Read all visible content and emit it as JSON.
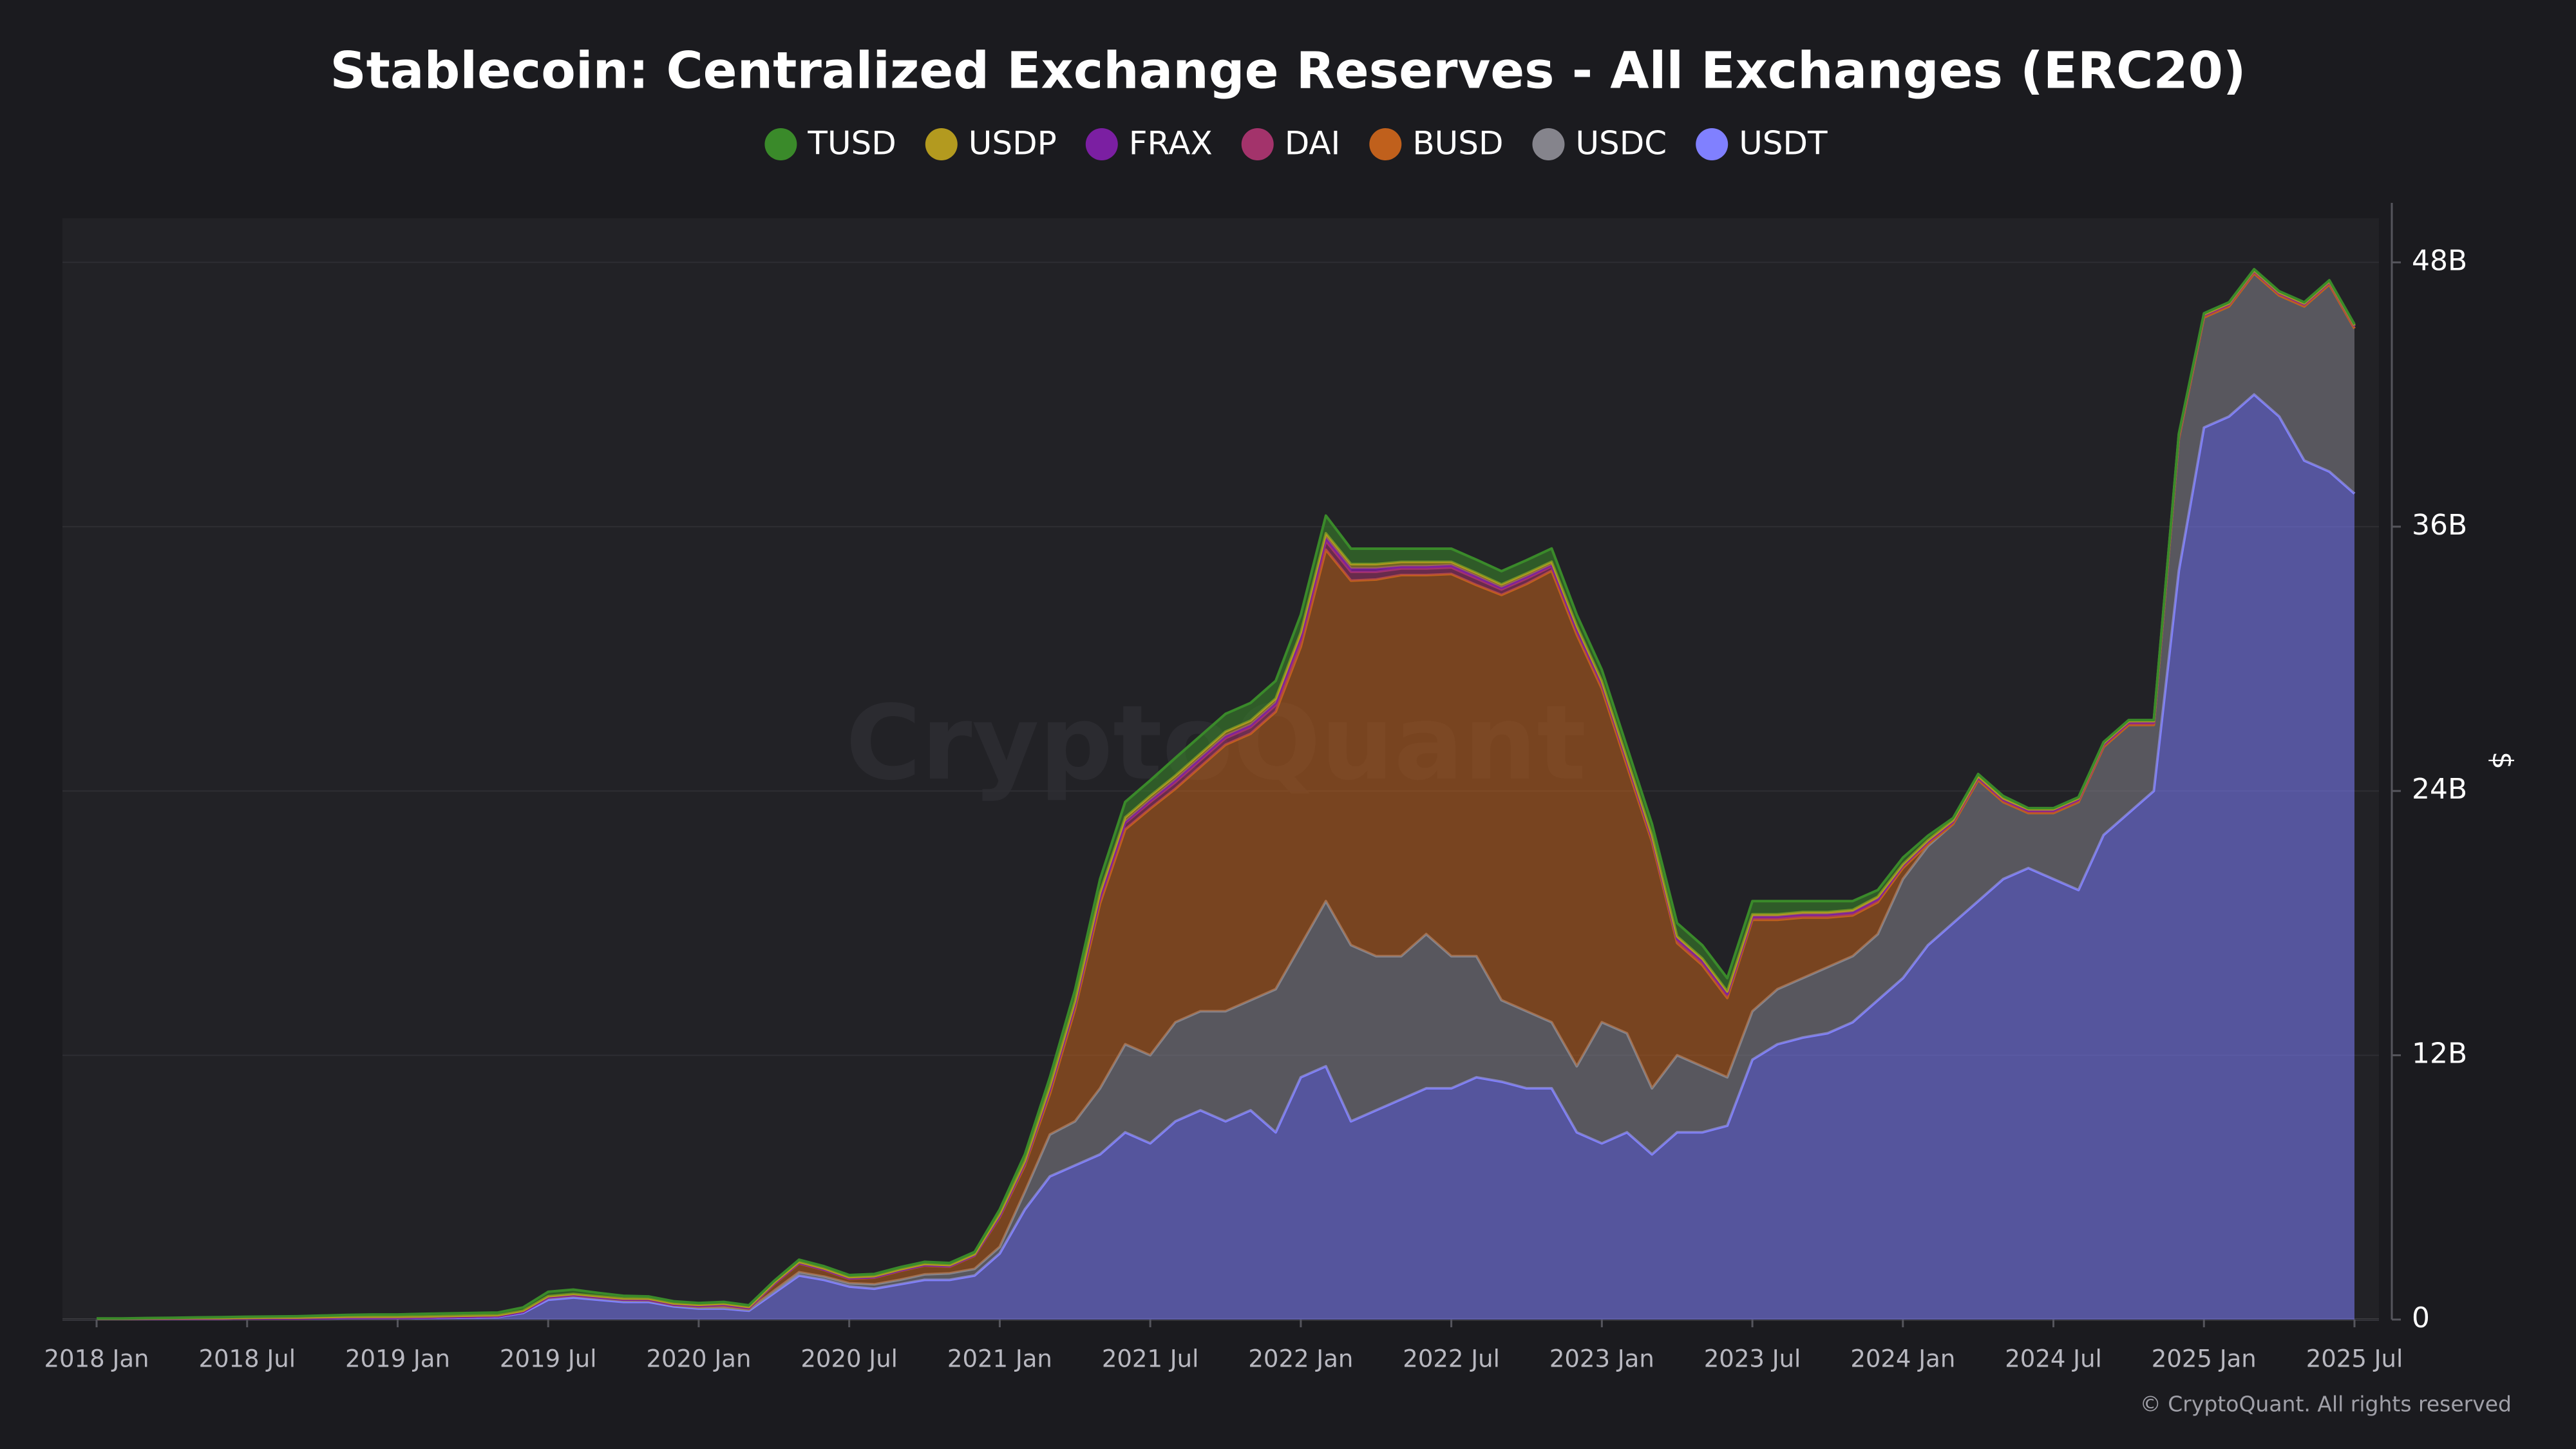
{
  "chart_data": {
    "type": "stacked_area",
    "title": "Stablecoin: Centralized Exchange Reserves - All Exchanges (ERC20)",
    "y_label": "$",
    "watermark": "CryptoQuant",
    "copyright": "© CryptoQuant. All rights reserved",
    "x": [
      "2018 Jan",
      "2018 Feb",
      "2018 Mar",
      "2018 Apr",
      "2018 May",
      "2018 Jun",
      "2018 Jul",
      "2018 Aug",
      "2018 Sep",
      "2018 Oct",
      "2018 Nov",
      "2018 Dec",
      "2019 Jan",
      "2019 Feb",
      "2019 Mar",
      "2019 Apr",
      "2019 May",
      "2019 Jun",
      "2019 Jul",
      "2019 Aug",
      "2019 Sep",
      "2019 Oct",
      "2019 Nov",
      "2019 Dec",
      "2020 Jan",
      "2020 Feb",
      "2020 Mar",
      "2020 Apr",
      "2020 May",
      "2020 Jun",
      "2020 Jul",
      "2020 Aug",
      "2020 Sep",
      "2020 Oct",
      "2020 Nov",
      "2020 Dec",
      "2021 Jan",
      "2021 Feb",
      "2021 Mar",
      "2021 Apr",
      "2021 May",
      "2021 Jun",
      "2021 Jul",
      "2021 Aug",
      "2021 Sep",
      "2021 Oct",
      "2021 Nov",
      "2021 Dec",
      "2022 Jan",
      "2022 Feb",
      "2022 Mar",
      "2022 Apr",
      "2022 May",
      "2022 Jun",
      "2022 Jul",
      "2022 Aug",
      "2022 Sep",
      "2022 Oct",
      "2022 Nov",
      "2022 Dec",
      "2023 Jan",
      "2023 Feb",
      "2023 Mar",
      "2023 Apr",
      "2023 May",
      "2023 Jun",
      "2023 Jul",
      "2023 Aug",
      "2023 Sep",
      "2023 Oct",
      "2023 Nov",
      "2023 Dec",
      "2024 Jan",
      "2024 Feb",
      "2024 Mar",
      "2024 Apr",
      "2024 May",
      "2024 Jun",
      "2024 Jul",
      "2024 Aug",
      "2024 Sep",
      "2024 Oct",
      "2024 Nov",
      "2024 Dec",
      "2025 Jan",
      "2025 Feb",
      "2025 Mar",
      "2025 Apr",
      "2025 May",
      "2025 Jun",
      "2025 Jul"
    ],
    "ylim": [
      0,
      50000000000.0
    ],
    "yticks": [
      0,
      {
        "value": 12000000000.0,
        "label": "12B"
      },
      {
        "value": 24000000000.0,
        "label": "24B"
      },
      {
        "value": 36000000000.0,
        "label": "36B"
      },
      {
        "value": 48000000000.0,
        "label": "48B"
      }
    ],
    "series": [
      {
        "name": "TUSD",
        "color": "#3a8a2a",
        "values": [
          10000000.0,
          10000000.0,
          20000000.0,
          20000000.0,
          30000000.0,
          40000000.0,
          50000000.0,
          50000000.0,
          60000000.0,
          70000000.0,
          80000000.0,
          100000000.0,
          100000000.0,
          120000000.0,
          120000000.0,
          120000000.0,
          120000000.0,
          150000000.0,
          200000000.0,
          200000000.0,
          150000000.0,
          120000000.0,
          100000000.0,
          100000000.0,
          80000000.0,
          80000000.0,
          80000000.0,
          80000000.0,
          100000000.0,
          100000000.0,
          100000000.0,
          100000000.0,
          100000000.0,
          100000000.0,
          100000000.0,
          100000000.0,
          200000000.0,
          300000000.0,
          400000000.0,
          500000000.0,
          600000000.0,
          700000000.0,
          700000000.0,
          800000000.0,
          800000000.0,
          800000000.0,
          800000000.0,
          800000000.0,
          800000000.0,
          800000000.0,
          700000000.0,
          700000000.0,
          600000000.0,
          600000000.0,
          600000000.0,
          600000000.0,
          600000000.0,
          600000000.0,
          600000000.0,
          500000000.0,
          500000000.0,
          500000000.0,
          500000000.0,
          600000000.0,
          600000000.0,
          600000000.0,
          600000000.0,
          600000000.0,
          500000000.0,
          500000000.0,
          400000000.0,
          300000000.0,
          300000000.0,
          200000000.0,
          100000000.0,
          100000000.0,
          100000000.0,
          50000000.0,
          50000000.0,
          50000000.0,
          50000000.0,
          50000000.0,
          50000000.0,
          50000000.0,
          50000000.0,
          50000000.0,
          50000000.0,
          50000000.0,
          50000000.0,
          50000000.0,
          50000000.0
        ]
      },
      {
        "name": "USDP",
        "color": "#b39a1f",
        "values": [
          10000000.0,
          10000000.0,
          20000000.0,
          20000000.0,
          30000000.0,
          30000000.0,
          30000000.0,
          40000000.0,
          40000000.0,
          50000000.0,
          50000000.0,
          50000000.0,
          50000000.0,
          50000000.0,
          50000000.0,
          50000000.0,
          50000000.0,
          50000000.0,
          50000000.0,
          50000000.0,
          50000000.0,
          50000000.0,
          50000000.0,
          50000000.0,
          50000000.0,
          50000000.0,
          50000000.0,
          50000000.0,
          50000000.0,
          50000000.0,
          50000000.0,
          50000000.0,
          50000000.0,
          50000000.0,
          50000000.0,
          50000000.0,
          100000000.0,
          100000000.0,
          150000000.0,
          150000000.0,
          200000000.0,
          200000000.0,
          200000000.0,
          200000000.0,
          200000000.0,
          200000000.0,
          200000000.0,
          200000000.0,
          200000000.0,
          200000000.0,
          200000000.0,
          200000000.0,
          200000000.0,
          200000000.0,
          150000000.0,
          150000000.0,
          150000000.0,
          150000000.0,
          150000000.0,
          150000000.0,
          100000000.0,
          100000000.0,
          100000000.0,
          100000000.0,
          100000000.0,
          100000000.0,
          100000000.0,
          100000000.0,
          100000000.0,
          100000000.0,
          100000000.0,
          100000000.0,
          50000000.0,
          50000000.0,
          50000000.0,
          50000000.0,
          50000000.0,
          50000000.0,
          50000000.0,
          50000000.0,
          50000000.0,
          50000000.0,
          50000000.0,
          50000000.0,
          30000000.0,
          30000000.0,
          30000000.0,
          30000000.0,
          30000000.0,
          30000000.0,
          30000000.0
        ]
      },
      {
        "name": "FRAX",
        "color": "#7b1fa2",
        "values": [
          0,
          0,
          0,
          0,
          0,
          0,
          0,
          0,
          0,
          0,
          0,
          0,
          0,
          0,
          0,
          0,
          0,
          0,
          0,
          0,
          0,
          0,
          0,
          0,
          0,
          0,
          0,
          0,
          0,
          0,
          0,
          0,
          0,
          0,
          0,
          0,
          0,
          0,
          0,
          20000000.0,
          50000000.0,
          50000000.0,
          80000000.0,
          100000000.0,
          100000000.0,
          100000000.0,
          100000000.0,
          100000000.0,
          150000000.0,
          150000000.0,
          150000000.0,
          150000000.0,
          100000000.0,
          100000000.0,
          100000000.0,
          100000000.0,
          80000000.0,
          80000000.0,
          60000000.0,
          50000000.0,
          50000000.0,
          50000000.0,
          50000000.0,
          50000000.0,
          50000000.0,
          50000000.0,
          50000000.0,
          50000000.0,
          50000000.0,
          50000000.0,
          50000000.0,
          50000000.0,
          20000000.0,
          20000000.0,
          20000000.0,
          20000000.0,
          20000000.0,
          20000000.0,
          20000000.0,
          20000000.0,
          20000000.0,
          20000000.0,
          20000000.0,
          20000000.0,
          10000000.0,
          10000000.0,
          10000000.0,
          10000000.0,
          10000000.0,
          10000000.0,
          10000000.0
        ]
      },
      {
        "name": "DAI",
        "color": "#a3336b",
        "values": [
          0,
          0,
          0,
          0,
          0,
          0,
          0,
          0,
          0,
          0,
          0,
          0,
          0,
          0,
          0,
          0,
          0,
          0,
          10000000.0,
          10000000.0,
          10000000.0,
          10000000.0,
          10000000.0,
          10000000.0,
          20000000.0,
          20000000.0,
          20000000.0,
          20000000.0,
          20000000.0,
          20000000.0,
          20000000.0,
          20000000.0,
          20000000.0,
          20000000.0,
          20000000.0,
          20000000.0,
          50000000.0,
          100000000.0,
          200000000.0,
          200000000.0,
          250000000.0,
          300000000.0,
          300000000.0,
          300000000.0,
          300000000.0,
          300000000.0,
          300000000.0,
          300000000.0,
          300000000.0,
          400000000.0,
          400000000.0,
          350000000.0,
          300000000.0,
          300000000.0,
          300000000.0,
          300000000.0,
          250000000.0,
          250000000.0,
          200000000.0,
          200000000.0,
          200000000.0,
          200000000.0,
          150000000.0,
          150000000.0,
          150000000.0,
          150000000.0,
          100000000.0,
          100000000.0,
          100000000.0,
          100000000.0,
          100000000.0,
          100000000.0,
          100000000.0,
          100000000.0,
          100000000.0,
          100000000.0,
          100000000.0,
          100000000.0,
          100000000.0,
          100000000.0,
          100000000.0,
          100000000.0,
          100000000.0,
          100000000.0,
          100000000.0,
          100000000.0,
          100000000.0,
          100000000.0,
          100000000.0,
          100000000.0,
          100000000.0
        ]
      },
      {
        "name": "BUSD",
        "color": "#c0601c",
        "values": [
          0,
          0,
          0,
          0,
          0,
          0,
          0,
          0,
          0,
          0,
          0,
          0,
          0,
          0,
          0,
          0,
          0,
          0,
          0,
          0,
          20000000.0,
          20000000.0,
          20000000.0,
          20000000.0,
          50000000.0,
          100000000.0,
          50000000.0,
          300000000.0,
          400000000.0,
          300000000.0,
          200000000.0,
          300000000.0,
          400000000.0,
          400000000.0,
          300000000.0,
          600000000.0,
          1350000000.0,
          1200000000.0,
          1850000000.0,
          5100000000.0,
          8400000000.0,
          9750000000.0,
          11200000000.0,
          10600000000.0,
          11100000000.0,
          12100000000.0,
          12100000000.0,
          12600000000.0,
          13550000000.0,
          15950000000.0,
          16550000000.0,
          17100000000.0,
          17300000000.0,
          16300000000.0,
          17350000000.0,
          16850000000.0,
          18400000000.0,
          19400000000.0,
          20500000000.0,
          19600000000.0,
          15150000000.0,
          12150000000.0,
          11200000000.0,
          5100000000.0,
          4600000000.0,
          3600000000.0,
          4150000000.0,
          3150000000.0,
          2750000000.0,
          2250000000.0,
          1850000000.0,
          1450000000.0,
          500000000.0,
          100000000.0,
          0,
          0,
          0,
          0,
          0,
          0,
          0,
          0,
          0,
          0,
          0,
          0,
          0,
          0,
          0,
          0,
          0
        ]
      },
      {
        "name": "USDC",
        "color": "#85848c",
        "values": [
          0,
          0,
          0,
          0,
          0,
          0,
          0,
          0,
          0,
          10000000.0,
          20000000.0,
          20000000.0,
          20000000.0,
          20000000.0,
          30000000.0,
          30000000.0,
          30000000.0,
          50000000.0,
          100000000.0,
          100000000.0,
          80000000.0,
          80000000.0,
          70000000.0,
          50000000.0,
          50000000.0,
          50000000.0,
          50000000.0,
          100000000.0,
          150000000.0,
          150000000.0,
          150000000.0,
          200000000.0,
          200000000.0,
          250000000.0,
          300000000.0,
          300000000.0,
          300000000.0,
          800000000.0,
          1900000000.0,
          2000000000.0,
          3000000000.0,
          4000000000.0,
          4000000000.0,
          4500000000.0,
          4500000000.0,
          5000000000.0,
          5000000000.0,
          6500000000.0,
          6000000000.0,
          7500000000.0,
          8000000000.0,
          7000000000.0,
          6500000000.0,
          7000000000.0,
          6000000000.0,
          5500000000.0,
          3700000000.0,
          3500000000.0,
          3000000000.0,
          3000000000.0,
          5500000000.0,
          4500000000.0,
          3000000000.0,
          3500000000.0,
          3000000000.0,
          2200000000.0,
          2200000000.0,
          2500000000.0,
          2700000000.0,
          3000000000.0,
          3000000000.0,
          3000000000.0,
          4500000000.0,
          4500000000.0,
          4500000000.0,
          5500000000.0,
          3500000000.0,
          2500000000.0,
          3000000000.0,
          4000000000.0,
          4000000000.0,
          4000000000.0,
          3000000000.0,
          6000000000.0,
          5000000000.0,
          5000000000.0,
          5500000000.0,
          5500000000.0,
          7000000000.0,
          8500000000.0,
          7500000000.0
        ]
      },
      {
        "name": "USDT",
        "color": "#8080ff",
        "values": [
          30000000.0,
          30000000.0,
          30000000.0,
          40000000.0,
          40000000.0,
          40000000.0,
          50000000.0,
          50000000.0,
          50000000.0,
          50000000.0,
          60000000.0,
          60000000.0,
          60000000.0,
          70000000.0,
          80000000.0,
          100000000.0,
          120000000.0,
          300000000.0,
          900000000.0,
          1000000000.0,
          900000000.0,
          800000000.0,
          800000000.0,
          600000000.0,
          500000000.0,
          500000000.0,
          400000000.0,
          1200000000.0,
          2000000000.0,
          1800000000.0,
          1500000000.0,
          1400000000.0,
          1600000000.0,
          1800000000.0,
          1800000000.0,
          2000000000.0,
          3000000000.0,
          5000000000.0,
          6500000000.0,
          7000000000.0,
          7500000000.0,
          8500000000.0,
          8000000000.0,
          9000000000.0,
          9500000000.0,
          9000000000.0,
          9500000000.0,
          8500000000.0,
          11000000000.0,
          11500000000.0,
          9000000000.0,
          9500000000.0,
          10000000000.0,
          10500000000.0,
          10500000000.0,
          11000000000.0,
          10800000000.0,
          10500000000.0,
          10500000000.0,
          8500000000.0,
          8000000000.0,
          8500000000.0,
          7500000000.0,
          8500000000.0,
          8500000000.0,
          8800000000.0,
          11800000000.0,
          12500000000.0,
          12800000000.0,
          13000000000.0,
          13500000000.0,
          14500000000.0,
          15500000000.0,
          17000000000.0,
          18000000000.0,
          19000000000.0,
          20000000000.0,
          20500000000.0,
          20000000000.0,
          19500000000.0,
          22000000000.0,
          23000000000.0,
          24000000000.0,
          34000000000.0,
          40500000000.0,
          41000000000.0,
          42000000000.0,
          41000000000.0,
          39000000000.0,
          38500000000.0,
          37500000000.0
        ]
      }
    ]
  }
}
